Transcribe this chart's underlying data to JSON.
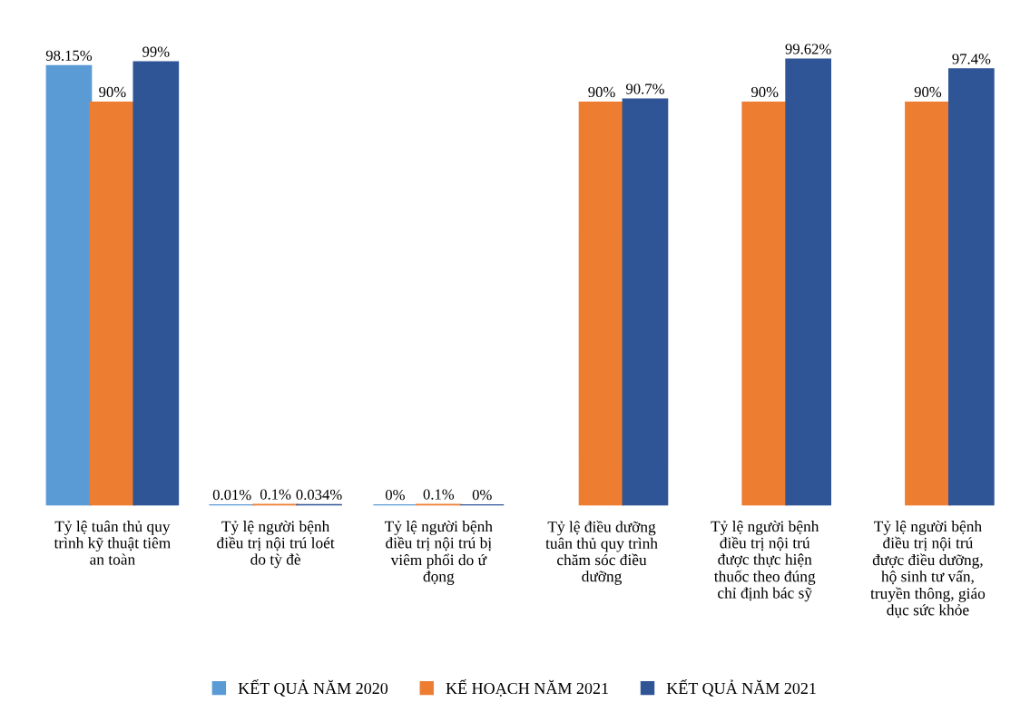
{
  "chart_data": {
    "type": "bar",
    "categories": [
      "Tỷ lệ tuân thủ quy\ntrình kỹ thuật tiêm\nan toàn",
      "Tỷ lệ người bệnh\nđiều trị nội trú loét\ndo tỳ đè",
      "Tỷ lệ người bệnh\nđiều trị nội trú bị\nviêm phổi do ứ\nđọng",
      "Tỷ lệ điều dưỡng\ntuân thủ quy trình\nchăm sóc điều\ndưỡng",
      "Tỷ lệ người bệnh\nđiều trị nội trú\nđược thực hiện\nthuốc theo đúng\nchỉ định bác sỹ",
      "Tỷ lệ người bệnh\nđiều trị nội trú\nđược điều dưỡng,\nhộ sinh tư vấn,\ntruyền thông, giáo\ndục sức khỏe"
    ],
    "series": [
      {
        "name": "KẾT QUẢ NĂM 2020",
        "color": "#5b9bd5",
        "values": [
          98.15,
          0.01,
          0,
          null,
          null,
          null
        ],
        "value_labels": [
          "98.15%",
          "0.01%",
          "0%",
          null,
          null,
          null
        ]
      },
      {
        "name": "KẾ HOẠCH NĂM 2021",
        "color": "#ed7d31",
        "values": [
          90,
          0.1,
          0.1,
          90,
          90,
          90
        ],
        "value_labels": [
          "90%",
          "0.1%",
          "0.1%",
          "90%",
          "90%",
          "90%"
        ]
      },
      {
        "name": "KẾT QUẢ NĂM 2021",
        "color": "#2f5597",
        "values": [
          99,
          0.034,
          0,
          90.7,
          99.62,
          97.4
        ],
        "value_labels": [
          "99%",
          "0.034%",
          "0%",
          "90.7%",
          "99.62%",
          "97.4%"
        ]
      }
    ],
    "legend": "bottom"
  }
}
